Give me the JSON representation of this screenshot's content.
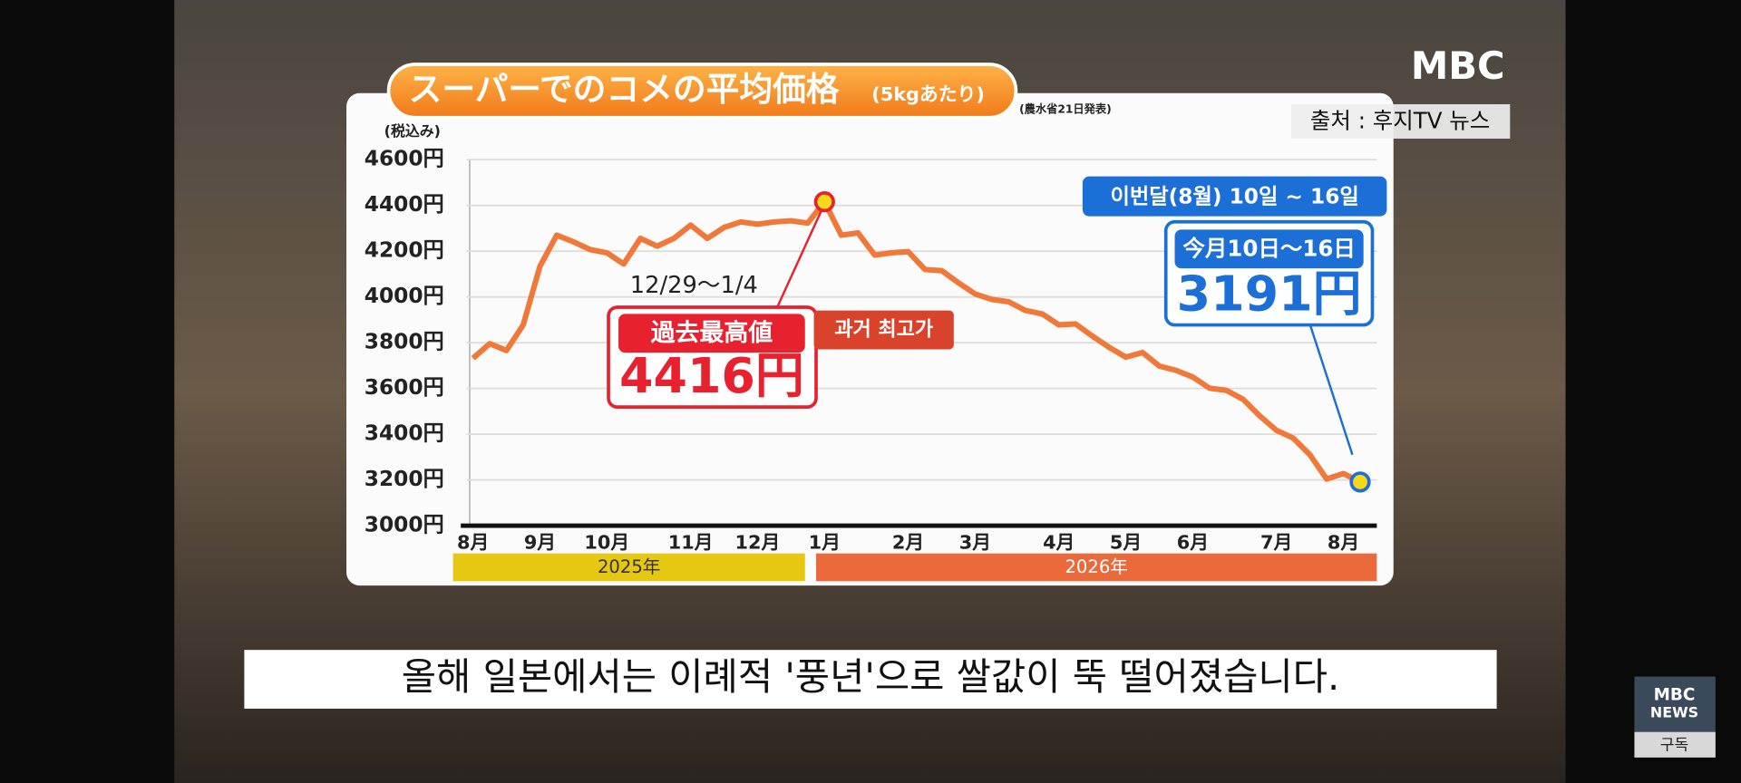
{
  "chart_data": {
    "type": "line",
    "title": "スーパーでのコメの平均価格",
    "subtitle": "(5kgあたり)",
    "source_note": "(農水省21日発表)",
    "y_label": "(税込み)",
    "ylim": [
      3000,
      4600
    ],
    "yticks": [
      {
        "value": 3000,
        "label": "3000円"
      },
      {
        "value": 3200,
        "label": "3200円"
      },
      {
        "value": 3400,
        "label": "3400円"
      },
      {
        "value": 3600,
        "label": "3600円"
      },
      {
        "value": 3800,
        "label": "3800円"
      },
      {
        "value": 4000,
        "label": "4000円"
      },
      {
        "value": 4200,
        "label": "4200円"
      },
      {
        "value": 4400,
        "label": "4400円"
      },
      {
        "value": 4600,
        "label": "4600円"
      }
    ],
    "grid": true,
    "color": "#f07838",
    "categories": [
      "8月",
      null,
      null,
      null,
      "9月",
      null,
      null,
      null,
      "10月",
      null,
      null,
      null,
      null,
      "11月",
      null,
      null,
      null,
      "12月",
      null,
      null,
      null,
      "1月",
      null,
      null,
      null,
      null,
      "2月",
      null,
      null,
      null,
      "3月",
      null,
      null,
      null,
      null,
      "4月",
      null,
      null,
      null,
      "5月",
      null,
      null,
      null,
      "6月",
      null,
      null,
      null,
      null,
      "7月",
      null,
      null,
      null,
      "8月",
      null
    ],
    "values": [
      3732,
      3796,
      3766,
      3878,
      4134,
      4270,
      4241,
      4207,
      4193,
      4144,
      4256,
      4222,
      4256,
      4314,
      4256,
      4304,
      4328,
      4318,
      4328,
      4333,
      4323,
      4416,
      4270,
      4280,
      4183,
      4193,
      4198,
      4120,
      4115,
      4062,
      4013,
      3989,
      3979,
      3941,
      3926,
      3878,
      3882,
      3829,
      3780,
      3737,
      3757,
      3698,
      3679,
      3650,
      3601,
      3592,
      3553,
      3480,
      3417,
      3383,
      3310,
      3204,
      3228,
      3191
    ],
    "value_labels": [
      null,
      null,
      null,
      null,
      null,
      null,
      null,
      null,
      null,
      null,
      null,
      null,
      null,
      null,
      null,
      null,
      null,
      null,
      null,
      null,
      null,
      "4416円",
      null,
      null,
      null,
      null,
      null,
      null,
      null,
      null,
      null,
      null,
      null,
      null,
      null,
      null,
      null,
      null,
      null,
      null,
      null,
      null,
      null,
      null,
      null,
      null,
      null,
      null,
      null,
      null,
      null,
      null,
      null,
      "3191円"
    ],
    "x_groups": [
      {
        "label": "2025年",
        "color": "#e6c812"
      },
      {
        "label": "2026年",
        "color": "#ea6a3c"
      }
    ],
    "annotations": {
      "peak_date": "12/29～1/4",
      "peak_caption": "過去最高値",
      "peak_caption_ko": "과거 최고가",
      "latest_caption_ko": "이번달(8월) 10일 ~ 16일",
      "latest_caption": "今月10日～16日"
    }
  },
  "logo": "MBC",
  "source": "출처 : 후지TV 뉴스",
  "caption": "올해 일본에서는 이례적 '풍년'으로 쌀값이 뚝 떨어졌습니다.",
  "channel_badge": {
    "logo_lines": [
      "MBC",
      "NEWS"
    ],
    "button": "구독"
  }
}
